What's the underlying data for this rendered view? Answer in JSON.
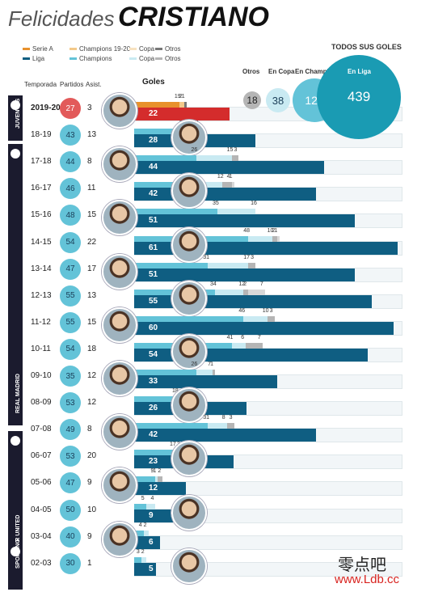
{
  "title": {
    "light": "Felicidades",
    "bold": "CRISTIANO"
  },
  "legend": [
    {
      "label": "Serie A",
      "color": "#e8912c"
    },
    {
      "label": "Champions 19-20",
      "color": "#f3c98a"
    },
    {
      "label": "Copa",
      "color": "#f7e2c0"
    },
    {
      "label": "Otros",
      "color": "#777777"
    },
    {
      "label": "Liga",
      "color": "#0f5e82"
    },
    {
      "label": "Champions",
      "color": "#63c3d8"
    },
    {
      "label": "Copa",
      "color": "#c9eaf2"
    },
    {
      "label": "Otros",
      "color": "#b5b5b5"
    }
  ],
  "headers": {
    "temporada": "Temporada",
    "partidos": "Partidos",
    "asist": "Asist.",
    "goles": "Goles"
  },
  "totals": {
    "heading": "TODOS SUS GOLES",
    "items": [
      {
        "label": "Otros",
        "value": "18"
      },
      {
        "label": "En Copa",
        "value": "38"
      },
      {
        "label": "En Champions",
        "value": "129"
      },
      {
        "label": "En Liga",
        "value": "439"
      }
    ]
  },
  "clubs": [
    {
      "name": "JUVENTUS"
    },
    {
      "name": "REAL MADRID"
    },
    {
      "name": "MANCHESTER UNITED"
    },
    {
      "name": "SPORTING"
    }
  ],
  "chart_data": {
    "type": "bar",
    "orientation": "horizontal",
    "stacked": true,
    "title": "Felicidades CRISTIANO",
    "rows": [
      {
        "season": "2019-20",
        "partidos": "27",
        "asist": "3",
        "current": true,
        "liga": 22,
        "champions": 19,
        "copa": 2,
        "otros": 1,
        "label_liga": "22",
        "label_champions": "19",
        "label_copa": "2",
        "label_otros": "1"
      },
      {
        "season": "18-19",
        "partidos": "43",
        "asist": "13",
        "liga": 28,
        "champions": 21,
        "copa": 6,
        "otros": 1,
        "label_liga": "28",
        "label_champions": "21",
        "label_copa": "6",
        "label_otros": "1"
      },
      {
        "season": "17-18",
        "partidos": "44",
        "asist": "8",
        "liga": 44,
        "champions": 26,
        "copa": 15,
        "otros": 3,
        "label_liga": "44",
        "label_champions": "26",
        "label_copa": "15",
        "label_otros": "3"
      },
      {
        "season": "16-17",
        "partidos": "46",
        "asist": "11",
        "liga": 42,
        "champions": 25,
        "copa": 12,
        "otros": 4,
        "extra": 1,
        "label_liga": "42",
        "label_champions": "25",
        "label_copa": "12",
        "label_otros": "4",
        "label_extra": "1"
      },
      {
        "season": "15-16",
        "partidos": "48",
        "asist": "15",
        "liga": 51,
        "champions": 35,
        "copa": 16,
        "otros": 0,
        "label_liga": "51",
        "label_champions": "35",
        "label_copa": "16"
      },
      {
        "season": "14-15",
        "partidos": "54",
        "asist": "22",
        "liga": 61,
        "champions": 48,
        "copa": 10,
        "otros": 2,
        "extra": 1,
        "label_liga": "61",
        "label_champions": "48",
        "label_copa": "10",
        "label_otros": "2",
        "label_extra": "1"
      },
      {
        "season": "13-14",
        "partidos": "47",
        "asist": "17",
        "liga": 51,
        "champions": 31,
        "copa": 17,
        "otros": 3,
        "label_liga": "51",
        "label_champions": "31",
        "label_copa": "17",
        "label_otros": "3"
      },
      {
        "season": "12-13",
        "partidos": "55",
        "asist": "13",
        "liga": 55,
        "champions": 34,
        "copa": 12,
        "otros": 2,
        "extra": 7,
        "label_liga": "55",
        "label_champions": "34",
        "label_copa": "12",
        "label_otros": "2",
        "label_extra": "7"
      },
      {
        "season": "11-12",
        "partidos": "55",
        "asist": "15",
        "liga": 60,
        "champions": 46,
        "copa": 10,
        "otros": 3,
        "label_liga": "60",
        "label_champions": "46",
        "label_copa": "10",
        "label_otros": "3"
      },
      {
        "season": "10-11",
        "partidos": "54",
        "asist": "18",
        "liga": 54,
        "champions": 41,
        "copa": 6,
        "otros": 7,
        "label_liga": "54",
        "label_champions": "41",
        "label_copa": "6",
        "label_otros": "7"
      },
      {
        "season": "09-10",
        "partidos": "35",
        "asist": "12",
        "liga": 33,
        "champions": 26,
        "copa": 7,
        "otros": 1,
        "label_liga": "33",
        "label_champions": "26",
        "label_copa": "7",
        "label_otros": "1"
      },
      {
        "season": "08-09",
        "partidos": "53",
        "asist": "12",
        "liga": 26,
        "champions": 18,
        "copa": 4,
        "otros": 3,
        "extra": 1,
        "label_liga": "26",
        "label_champions": "18",
        "label_copa": "4",
        "label_otros": "3",
        "label_extra": "1"
      },
      {
        "season": "07-08",
        "partidos": "49",
        "asist": "8",
        "liga": 42,
        "champions": 31,
        "copa": 8,
        "otros": 3,
        "label_liga": "42",
        "label_champions": "31",
        "label_copa": "8",
        "label_otros": "3"
      },
      {
        "season": "06-07",
        "partidos": "53",
        "asist": "20",
        "liga": 23,
        "champions": 17,
        "copa": 3,
        "otros": 3,
        "label_liga": "23",
        "label_champions": "17",
        "label_copa": "3",
        "label_otros": "3"
      },
      {
        "season": "05-06",
        "partidos": "47",
        "asist": "9",
        "liga": 12,
        "champions": 9,
        "copa": 1,
        "otros": 2,
        "label_liga": "12",
        "label_champions": "9",
        "label_copa": "1",
        "label_otros": "2"
      },
      {
        "season": "04-05",
        "partidos": "50",
        "asist": "10",
        "liga": 9,
        "champions": 5,
        "copa": 4,
        "otros": 0,
        "label_liga": "9",
        "label_champions": "5",
        "label_copa": "4"
      },
      {
        "season": "03-04",
        "partidos": "40",
        "asist": "9",
        "liga": 6,
        "champions": 4,
        "copa": 2,
        "otros": 0,
        "label_liga": "6",
        "label_champions": "4",
        "label_copa": "2"
      },
      {
        "season": "02-03",
        "partidos": "30",
        "asist": "1",
        "liga": 5,
        "champions": 3,
        "copa": 2,
        "otros": 0,
        "label_liga": "5",
        "label_champions": "3",
        "label_copa": "2"
      }
    ]
  },
  "watermark": {
    "cn": "零点吧",
    "url": "www.Ldb.cc"
  }
}
